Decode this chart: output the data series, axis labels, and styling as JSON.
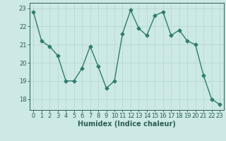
{
  "x": [
    0,
    1,
    2,
    3,
    4,
    5,
    6,
    7,
    8,
    9,
    10,
    11,
    12,
    13,
    14,
    15,
    16,
    17,
    18,
    19,
    20,
    21,
    22,
    23
  ],
  "y": [
    22.8,
    21.2,
    20.9,
    20.4,
    19.0,
    19.0,
    19.7,
    20.9,
    19.8,
    18.6,
    19.0,
    21.6,
    22.9,
    21.9,
    21.5,
    22.6,
    22.8,
    21.5,
    21.8,
    21.2,
    21.0,
    19.3,
    18.0,
    17.7
  ],
  "line_color": "#2e7d6e",
  "marker": "D",
  "markersize": 2.5,
  "linewidth": 1.0,
  "bg_color": "#cce9e5",
  "grid_color": "#b8d8d4",
  "xlabel": "Humidex (Indice chaleur)",
  "xlim": [
    -0.5,
    23.5
  ],
  "ylim": [
    17.4,
    23.3
  ],
  "yticks": [
    18,
    19,
    20,
    21,
    22,
    23
  ],
  "xticks": [
    0,
    1,
    2,
    3,
    4,
    5,
    6,
    7,
    8,
    9,
    10,
    11,
    12,
    13,
    14,
    15,
    16,
    17,
    18,
    19,
    20,
    21,
    22,
    23
  ],
  "tick_color": "#2e5c56",
  "label_fontsize": 6,
  "xlabel_fontsize": 7
}
